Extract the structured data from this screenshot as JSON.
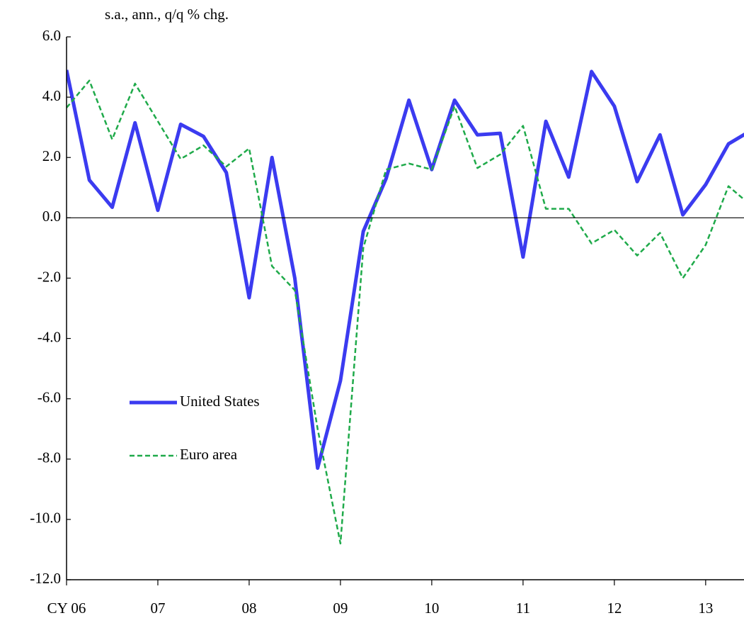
{
  "chart_data": {
    "type": "line",
    "title": "s.a., ann., q/q % chg.",
    "x": [
      2006,
      2006.25,
      2006.5,
      2006.75,
      2007,
      2007.25,
      2007.5,
      2007.75,
      2008,
      2008.25,
      2008.5,
      2008.75,
      2009,
      2009.25,
      2009.5,
      2009.75,
      2010,
      2010.25,
      2010.5,
      2010.75,
      2011,
      2011.25,
      2011.5,
      2011.75,
      2012,
      2012.25,
      2012.5,
      2012.75,
      2013,
      2013.25,
      2013.5
    ],
    "series": [
      {
        "name": "United States",
        "color": "#3b3bf0",
        "dash": false,
        "values": [
          4.9,
          1.25,
          0.35,
          3.15,
          0.25,
          3.1,
          2.7,
          1.5,
          -2.65,
          2.0,
          -2.0,
          -8.3,
          -5.4,
          -0.45,
          1.3,
          3.9,
          1.6,
          3.9,
          2.75,
          2.8,
          -1.3,
          3.2,
          1.35,
          4.85,
          3.7,
          1.2,
          2.75,
          0.1,
          1.1,
          2.45,
          2.9
        ]
      },
      {
        "name": "Euro area",
        "color": "#1faa4a",
        "dash": true,
        "values": [
          3.65,
          4.55,
          2.6,
          4.45,
          3.2,
          1.95,
          2.4,
          1.7,
          2.3,
          -1.6,
          -2.4,
          -7.0,
          -10.8,
          -1.0,
          1.6,
          1.8,
          1.6,
          3.7,
          1.65,
          2.1,
          3.05,
          0.3,
          0.3,
          -0.85,
          -0.4,
          -1.25,
          -0.5,
          -2.0,
          -0.9,
          1.05,
          0.4
        ]
      }
    ],
    "xlim": [
      2006,
      2013.42
    ],
    "xticks": [
      {
        "value": 2006,
        "label": "CY 06"
      },
      {
        "value": 2007,
        "label": "07"
      },
      {
        "value": 2008,
        "label": "08"
      },
      {
        "value": 2009,
        "label": "09"
      },
      {
        "value": 2010,
        "label": "10"
      },
      {
        "value": 2011,
        "label": "11"
      },
      {
        "value": 2012,
        "label": "12"
      },
      {
        "value": 2013,
        "label": "13"
      }
    ],
    "ylim": [
      -12,
      6
    ],
    "yticks": [
      {
        "value": -12,
        "label": "-12.0"
      },
      {
        "value": -10,
        "label": "-10.0"
      },
      {
        "value": -8,
        "label": "-8.0"
      },
      {
        "value": -6,
        "label": "-6.0"
      },
      {
        "value": -4,
        "label": "-4.0"
      },
      {
        "value": -2,
        "label": "-2.0"
      },
      {
        "value": 0,
        "label": "0.0"
      },
      {
        "value": 2,
        "label": "2.0"
      },
      {
        "value": 4,
        "label": "4.0"
      },
      {
        "value": 6,
        "label": "6.0"
      }
    ],
    "negative_tick_color": "#ff0000",
    "grid": false
  }
}
